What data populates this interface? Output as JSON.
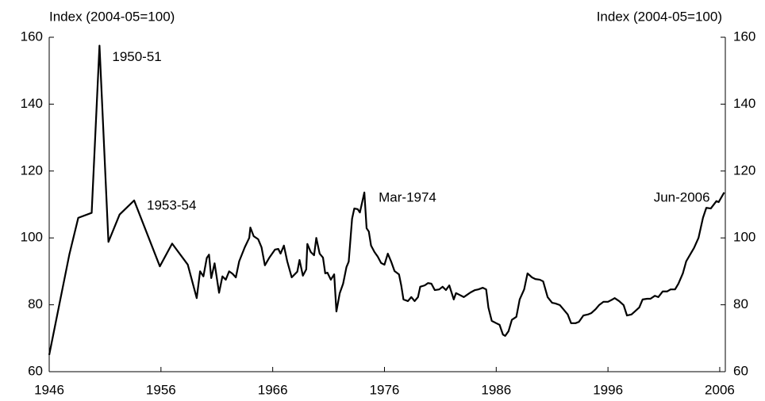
{
  "chart_data": {
    "type": "line",
    "y_label": "Index (2004-05=100)",
    "y2_label": "Index (2004-05=100)",
    "xlim": [
      1946,
      2006.5
    ],
    "xticks": [
      1946,
      1956,
      1966,
      1976,
      1986,
      1996,
      2006
    ],
    "ylim": [
      60,
      160
    ],
    "yticks": [
      60,
      80,
      100,
      120,
      140,
      160
    ],
    "y2lim": [
      60,
      160
    ],
    "y2ticks": [
      60,
      80,
      100,
      120,
      140,
      160
    ],
    "grid": false,
    "annotations": [
      {
        "text": "1950-51",
        "x": 1950.5,
        "y": 157.5
      },
      {
        "text": "1953-54",
        "x": 1953.6,
        "y": 111.2
      },
      {
        "text": "Mar-1974",
        "x": 1974.2,
        "y": 113.6
      },
      {
        "text": "Jun-2006",
        "x": 2006.4,
        "y": 113.6
      }
    ],
    "series": [
      {
        "color": "#000000",
        "x": [
          1946.0,
          1947.8,
          1948.6,
          1949.8,
          1950.5,
          1951.3,
          1952.3,
          1953.6,
          1955.9,
          1957.0,
          1958.4,
          1959.2,
          1959.5,
          1959.8,
          1960.1,
          1960.3,
          1960.5,
          1960.8,
          1961.2,
          1961.5,
          1961.8,
          1962.1,
          1962.4,
          1962.7,
          1963.0,
          1963.5,
          1963.9,
          1964.0,
          1964.3,
          1964.7,
          1965.0,
          1965.3,
          1965.7,
          1966.2,
          1966.5,
          1966.7,
          1967.0,
          1967.3,
          1967.7,
          1968.2,
          1968.4,
          1968.7,
          1969.0,
          1969.1,
          1969.4,
          1969.7,
          1969.9,
          1970.2,
          1970.5,
          1970.7,
          1970.9,
          1971.2,
          1971.5,
          1971.7,
          1972.0,
          1972.3,
          1972.6,
          1972.8,
          1973.1,
          1973.3,
          1973.6,
          1973.8,
          1974.2,
          1974.4,
          1974.6,
          1974.8,
          1975.1,
          1975.4,
          1975.7,
          1976.0,
          1976.3,
          1976.6,
          1976.9,
          1977.3,
          1977.5,
          1977.7,
          1978.1,
          1978.4,
          1978.7,
          1979.0,
          1979.2,
          1979.6,
          1979.9,
          1980.2,
          1980.5,
          1980.9,
          1981.2,
          1981.5,
          1981.8,
          1982.2,
          1982.4,
          1982.7,
          1983.1,
          1983.4,
          1983.7,
          1984.1,
          1984.4,
          1984.8,
          1985.1,
          1985.3,
          1985.6,
          1986.0,
          1986.3,
          1986.6,
          1986.8,
          1987.1,
          1987.4,
          1987.8,
          1988.1,
          1988.5,
          1988.8,
          1989.2,
          1989.5,
          1989.9,
          1990.2,
          1990.6,
          1991.0,
          1991.3,
          1991.7,
          1992.0,
          1992.4,
          1992.7,
          1993.1,
          1993.4,
          1993.8,
          1994.2,
          1994.5,
          1994.9,
          1995.2,
          1995.6,
          1996.0,
          1996.4,
          1996.6,
          1997.0,
          1997.4,
          1997.7,
          1998.1,
          1998.4,
          1998.8,
          1999.1,
          1999.5,
          1999.8,
          2000.2,
          2000.5,
          2000.9,
          2001.3,
          2001.6,
          2002.0,
          2002.3,
          2002.7,
          2003.0,
          2003.4,
          2003.7,
          2004.1,
          2004.5,
          2004.8,
          2005.2,
          2005.7,
          2005.9,
          2006.4
        ],
        "values": [
          65,
          95,
          106,
          107.5,
          157.5,
          98.8,
          107,
          111.2,
          91.5,
          98.3,
          92,
          82,
          90,
          88.5,
          94,
          95,
          88,
          92.4,
          83.6,
          88.5,
          87.5,
          90,
          89.3,
          88.2,
          93,
          97.2,
          100,
          103.1,
          100.5,
          99.6,
          97.2,
          91.8,
          94.1,
          96.5,
          96.7,
          95.3,
          97.7,
          93,
          88.2,
          89.9,
          93.4,
          88.7,
          90.6,
          98.2,
          95.8,
          94.8,
          100,
          95.3,
          94.1,
          89.4,
          89.6,
          87.5,
          89.1,
          78,
          83.5,
          86.3,
          91.3,
          92.9,
          105.7,
          108.8,
          108.6,
          107.6,
          113.6,
          102.9,
          101.9,
          97.7,
          95.8,
          94.4,
          92.5,
          92,
          95.3,
          92.9,
          90.1,
          89.1,
          85.8,
          81.6,
          81.1,
          82.3,
          81.1,
          82.3,
          85.4,
          85.8,
          86.5,
          86.3,
          84.4,
          84.6,
          85.4,
          84.4,
          85.8,
          81.6,
          83.5,
          83,
          82.3,
          83,
          83.7,
          84.4,
          84.6,
          85.1,
          84.6,
          79.2,
          75.2,
          74.5,
          74,
          71.1,
          70.7,
          72.1,
          75.5,
          76.4,
          81.6,
          84.6,
          89.4,
          88.2,
          87.7,
          87.5,
          87,
          82.3,
          80.6,
          80.4,
          79.9,
          78.7,
          77.1,
          74.5,
          74.5,
          74.9,
          76.8,
          77.1,
          77.5,
          78.7,
          79.9,
          80.9,
          80.9,
          81.6,
          82,
          81.1,
          79.9,
          76.8,
          77.1,
          78,
          79.2,
          81.6,
          81.8,
          81.8,
          82.7,
          82.3,
          84,
          84,
          84.6,
          84.6,
          86.3,
          89.4,
          93,
          95.3,
          97,
          100,
          106,
          109,
          108.8,
          111,
          110.7,
          113.6
        ]
      }
    ]
  }
}
